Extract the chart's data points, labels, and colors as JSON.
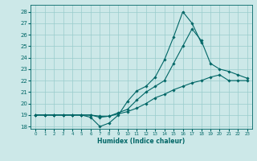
{
  "title": "",
  "xlabel": "Humidex (Indice chaleur)",
  "bg_color": "#cce8e8",
  "grid_color": "#99cccc",
  "line_color": "#006666",
  "xlim": [
    -0.5,
    23.5
  ],
  "ylim": [
    17.8,
    28.6
  ],
  "xticks": [
    0,
    1,
    2,
    3,
    4,
    5,
    6,
    7,
    8,
    9,
    10,
    11,
    12,
    13,
    14,
    15,
    16,
    17,
    18,
    19,
    20,
    21,
    22,
    23
  ],
  "yticks": [
    18,
    19,
    20,
    21,
    22,
    23,
    24,
    25,
    26,
    27,
    28
  ],
  "series1_x": [
    0,
    1,
    2,
    3,
    4,
    5,
    6,
    7,
    8,
    9,
    10,
    11,
    12,
    13,
    14,
    15,
    16,
    17,
    18,
    19,
    20,
    21,
    22,
    23
  ],
  "series1_y": [
    19,
    19,
    19,
    19,
    19,
    19,
    19,
    18.8,
    18.9,
    19.1,
    19.3,
    19.6,
    20.0,
    20.5,
    20.8,
    21.2,
    21.5,
    21.8,
    22.0,
    22.3,
    22.5,
    22.0,
    22.0,
    22.0
  ],
  "series2_x": [
    0,
    1,
    2,
    3,
    4,
    5,
    6,
    7,
    8,
    9,
    10,
    11,
    12,
    13,
    14,
    15,
    16,
    17,
    18
  ],
  "series2_y": [
    19,
    19,
    19,
    19,
    19,
    19,
    18.8,
    18.0,
    18.3,
    19.0,
    20.2,
    21.1,
    21.5,
    22.3,
    23.8,
    25.8,
    28.0,
    27.0,
    25.3
  ],
  "series3_x": [
    0,
    1,
    2,
    3,
    4,
    5,
    6,
    7,
    8,
    9,
    10,
    11,
    12,
    13,
    14,
    15,
    16,
    17,
    18,
    19,
    20,
    21,
    22,
    23
  ],
  "series3_y": [
    19,
    19,
    19,
    19,
    19,
    19,
    19.0,
    18.9,
    18.9,
    19.2,
    19.5,
    20.3,
    21.0,
    21.5,
    22.0,
    23.5,
    25.0,
    26.5,
    25.5,
    23.5,
    23.0,
    22.8,
    22.5,
    22.2
  ]
}
